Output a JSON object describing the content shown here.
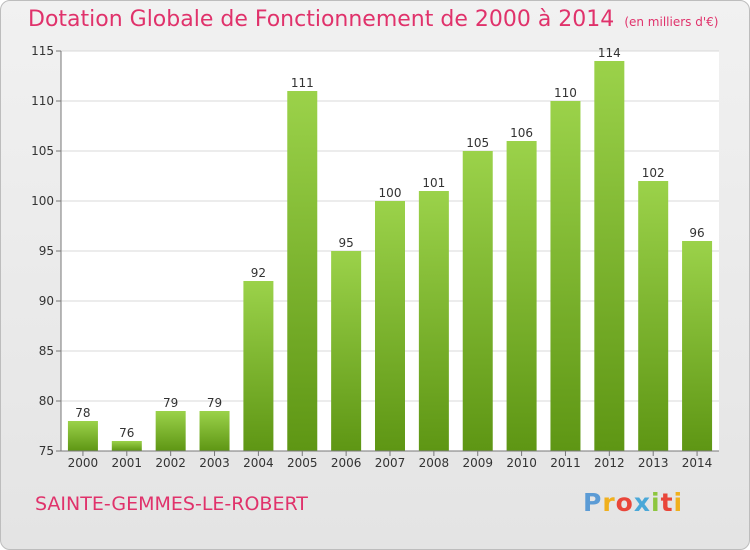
{
  "title": "Dotation Globale de Fonctionnement de 2000 à 2014",
  "unit": "(en milliers d'€)",
  "commune": "SAINTE-GEMMES-LE-ROBERT",
  "logo": {
    "text": "Proxiti",
    "letter_colors": [
      "#5b9bd5",
      "#f0b01e",
      "#e9463a",
      "#4aa8d8",
      "#8dc63f",
      "#e9463a",
      "#f0b01e"
    ]
  },
  "colors": {
    "bar_top": "#9bd24a",
    "bar_bottom": "#5e9614",
    "accent": "#e0326b"
  },
  "chart_data": {
    "type": "bar",
    "categories": [
      "2000",
      "2001",
      "2002",
      "2003",
      "2004",
      "2005",
      "2006",
      "2007",
      "2008",
      "2009",
      "2010",
      "2011",
      "2012",
      "2013",
      "2014"
    ],
    "values": [
      78,
      76,
      79,
      79,
      92,
      111,
      95,
      100,
      101,
      105,
      106,
      110,
      114,
      102,
      96
    ],
    "ylim": [
      75,
      115
    ],
    "yticks": [
      75,
      80,
      85,
      90,
      95,
      100,
      105,
      110,
      115
    ],
    "grid": true,
    "title": "Dotation Globale de Fonctionnement de 2000 à 2014",
    "xlabel": "",
    "ylabel": ""
  }
}
